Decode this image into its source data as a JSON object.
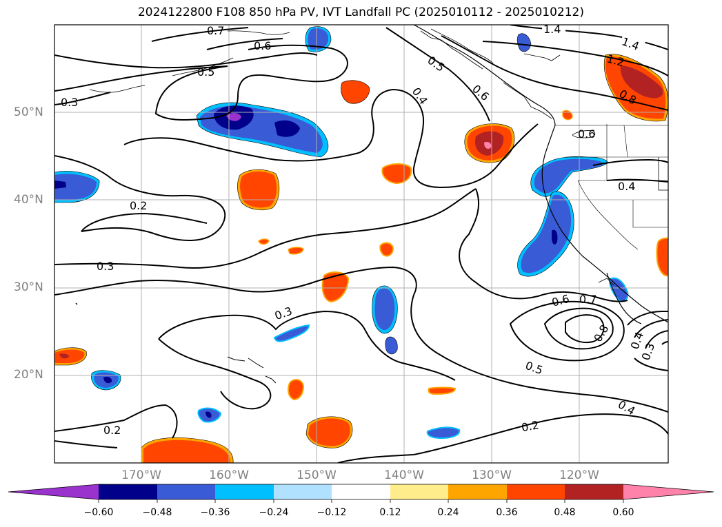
{
  "title": "2024122800 F108 850 hPa PV, IVT Landfall PC (2025010112 - 2025010212)",
  "map": {
    "projection": "PlateCarree",
    "extent": {
      "lon_min": -180,
      "lon_max": -110,
      "lat_min": 10,
      "lat_max": 60
    },
    "gridlines": true,
    "lat_labels": [
      "50°N",
      "40°N",
      "30°N",
      "20°N"
    ],
    "lon_labels": [
      "170°W",
      "160°W",
      "150°W",
      "140°W",
      "130°W",
      "120°W"
    ],
    "contour_labels": [
      "1.4",
      "1.4",
      "1.2",
      "0.7",
      "0.6",
      "0.5",
      "0.5",
      "0.3",
      "0.4",
      "0.6",
      "0.8",
      "0.6",
      "0.4",
      "0.2",
      "0.3",
      "0.3",
      "0.6",
      "0.7",
      "0.8",
      "0.5",
      "0.4",
      "0.3",
      "0.4",
      "0.2",
      "0.2"
    ],
    "colors": {
      "deep_purple": "#9a32cd",
      "navy": "#00008b",
      "royal_blue": "#3a5bd6",
      "deep_sky_blue": "#00bfff",
      "light_sky_blue": "#b0e2ff",
      "light_yellow": "#ffec8b",
      "orange": "#ffa500",
      "orange_red": "#ff4500",
      "firebrick": "#b22222",
      "hot_pink": "#ff82ab"
    }
  },
  "colorbar": {
    "ticks": [
      "−0.60",
      "−0.48",
      "−0.36",
      "−0.24",
      "−0.12",
      "0.12",
      "0.24",
      "0.36",
      "0.48",
      "0.60"
    ],
    "bins": [
      "#9a32cd",
      "#00008b",
      "#3a5bd6",
      "#00bfff",
      "#b0e2ff",
      "#ffffff",
      "#ffec8b",
      "#ffa500",
      "#ff4500",
      "#b22222",
      "#ff82ab"
    ],
    "extend": "both"
  }
}
